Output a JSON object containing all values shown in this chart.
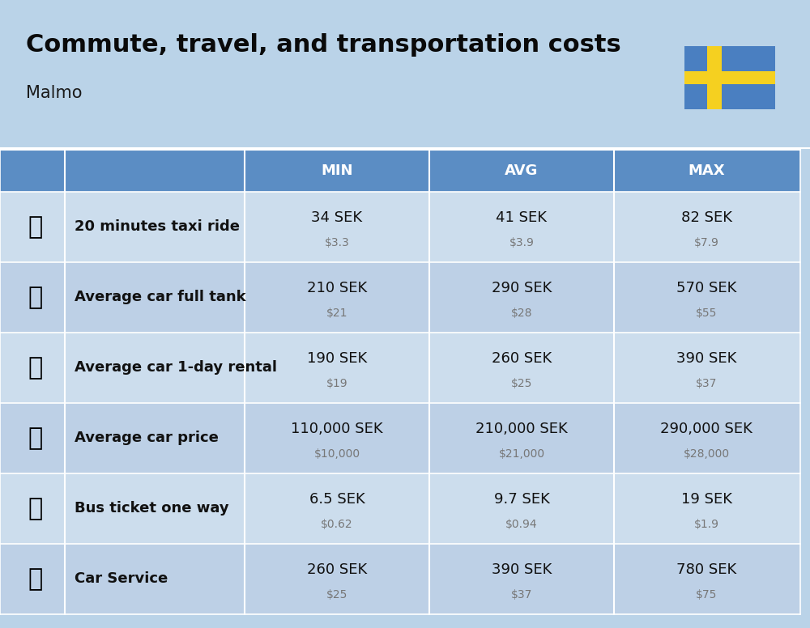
{
  "title": "Commute, travel, and transportation costs",
  "subtitle": "Malmo",
  "header_bg": "#5b8dc4",
  "header_text_color": "#ffffff",
  "row_bg_light": "#ccdded",
  "row_bg_dark": "#bdd0e6",
  "title_bg": "#bad3e8",
  "col_headers": [
    "MIN",
    "AVG",
    "MAX"
  ],
  "rows": [
    {
      "label": "20 minutes taxi ride",
      "min_sek": "34 SEK",
      "min_usd": "$3.3",
      "avg_sek": "41 SEK",
      "avg_usd": "$3.9",
      "max_sek": "82 SEK",
      "max_usd": "$7.9"
    },
    {
      "label": "Average car full tank",
      "min_sek": "210 SEK",
      "min_usd": "$21",
      "avg_sek": "290 SEK",
      "avg_usd": "$28",
      "max_sek": "570 SEK",
      "max_usd": "$55"
    },
    {
      "label": "Average car 1-day rental",
      "min_sek": "190 SEK",
      "min_usd": "$19",
      "avg_sek": "260 SEK",
      "avg_usd": "$25",
      "max_sek": "390 SEK",
      "max_usd": "$37"
    },
    {
      "label": "Average car price",
      "min_sek": "110,000 SEK",
      "min_usd": "$10,000",
      "avg_sek": "210,000 SEK",
      "avg_usd": "$21,000",
      "max_sek": "290,000 SEK",
      "max_usd": "$28,000"
    },
    {
      "label": "Bus ticket one way",
      "min_sek": "6.5 SEK",
      "min_usd": "$0.62",
      "avg_sek": "9.7 SEK",
      "avg_usd": "$0.94",
      "max_sek": "19 SEK",
      "max_usd": "$1.9"
    },
    {
      "label": "Car Service",
      "min_sek": "260 SEK",
      "min_usd": "$25",
      "avg_sek": "390 SEK",
      "avg_usd": "$37",
      "max_sek": "780 SEK",
      "max_usd": "$75"
    }
  ],
  "flag_blue": "#4a7fc1",
  "flag_yellow": "#f5d020",
  "title_fontsize": 22,
  "subtitle_fontsize": 15,
  "header_fontsize": 13,
  "label_fontsize": 13,
  "sek_fontsize": 13,
  "usd_fontsize": 10
}
